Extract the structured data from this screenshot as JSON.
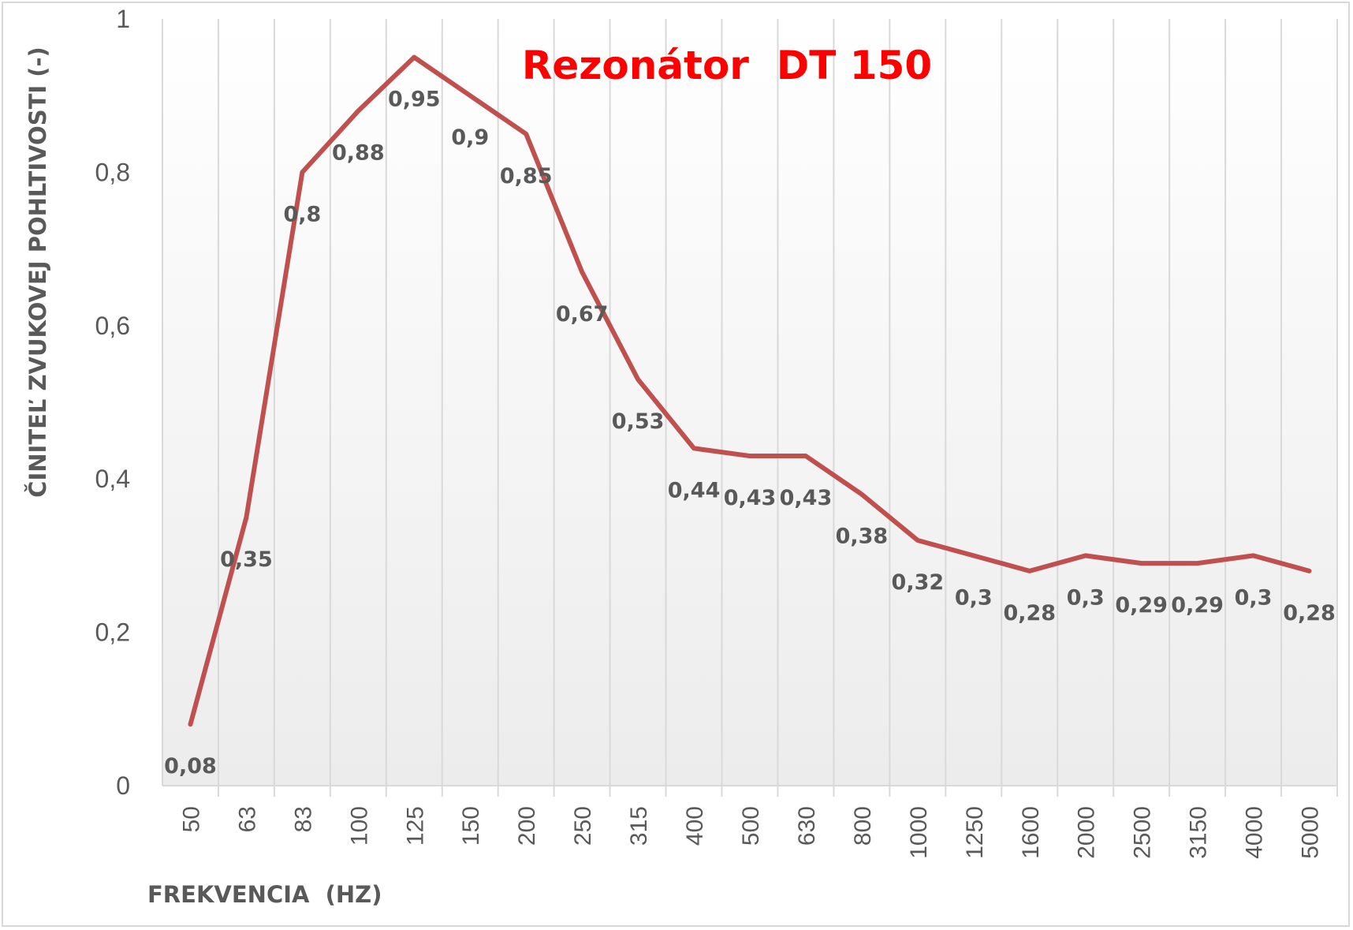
{
  "chart_data": {
    "type": "line",
    "title": "Rezonátor  DT 150",
    "xlabel": "FREKVENCIA  (HZ)",
    "ylabel": "ČINITEĽ ZVUKOVEJ POHLTIVOSTI (-)",
    "categories": [
      "50",
      "63",
      "83",
      "100",
      "125",
      "150",
      "200",
      "250",
      "315",
      "400",
      "500",
      "630",
      "800",
      "1000",
      "1250",
      "1600",
      "2000",
      "2500",
      "3150",
      "4000",
      "5000"
    ],
    "series": [
      {
        "values": [
          0.08,
          0.35,
          0.8,
          0.88,
          0.95,
          0.9,
          0.85,
          0.67,
          0.53,
          0.44,
          0.43,
          0.43,
          0.38,
          0.32,
          0.3,
          0.28,
          0.3,
          0.29,
          0.29,
          0.3,
          0.28
        ],
        "labels": [
          "0,08",
          "0,35",
          "0,8",
          "0,88",
          "0,95",
          "0,9",
          "0,85",
          "0,67",
          "0,53",
          "0,44",
          "0,43",
          "0,43",
          "0,38",
          "0,32",
          "0,3",
          "0,28",
          "0,3",
          "0,29",
          "0,29",
          "0,3",
          "0,28"
        ]
      }
    ],
    "ylim": [
      0,
      1
    ],
    "yticks": [
      0,
      0.2,
      0.4,
      0.6,
      0.8,
      1
    ],
    "ytick_labels": [
      "0",
      "0,2",
      "0,4",
      "0,6",
      "0,8",
      "1"
    ],
    "grid": "vertical",
    "legend": "none",
    "colors": {
      "line": "#c0504d",
      "title": "#ff0000",
      "grid": "#d9d9d9",
      "text": "#595959"
    }
  }
}
